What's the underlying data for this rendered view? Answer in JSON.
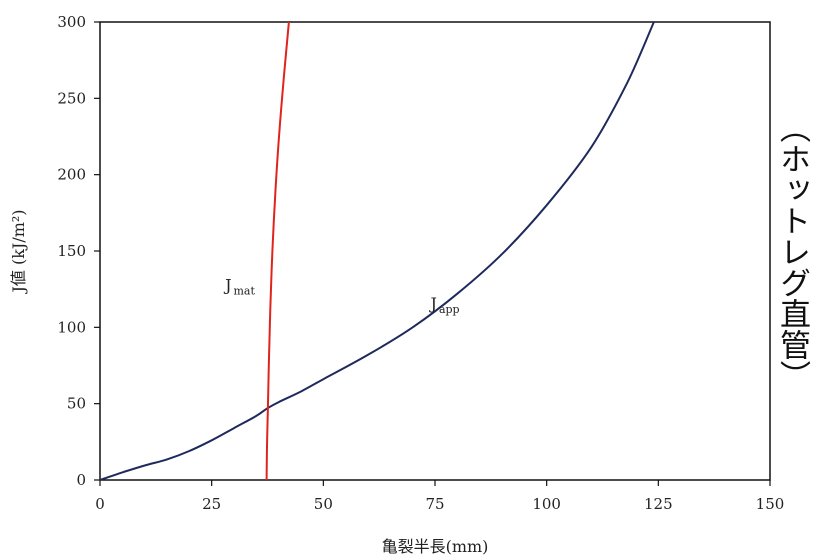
{
  "chart_data": {
    "type": "line",
    "xlabel": "亀裂半長(mm)",
    "ylabel": "J値 (kJ/m²)",
    "side_label": "（ホットレグ直管）",
    "xlim": [
      0,
      150
    ],
    "ylim": [
      0,
      300
    ],
    "x_ticks": [
      0,
      25,
      50,
      75,
      100,
      125,
      150
    ],
    "y_ticks": [
      0,
      50,
      100,
      150,
      200,
      250,
      300
    ],
    "grid": false,
    "series": [
      {
        "key": "J_app",
        "label_main": "J",
        "label_sub": "app",
        "color": "#1f2a5c",
        "label_at": {
          "x": 74,
          "y": 112
        },
        "points": [
          [
            0,
            0
          ],
          [
            2,
            2
          ],
          [
            5,
            5
          ],
          [
            10,
            9.5
          ],
          [
            15,
            13.5
          ],
          [
            20,
            19
          ],
          [
            25,
            26
          ],
          [
            30,
            34
          ],
          [
            35,
            42
          ],
          [
            37.5,
            47
          ],
          [
            40,
            51
          ],
          [
            45,
            58
          ],
          [
            50,
            66
          ],
          [
            60,
            82
          ],
          [
            70,
            100
          ],
          [
            80,
            122
          ],
          [
            90,
            148
          ],
          [
            100,
            180
          ],
          [
            110,
            218
          ],
          [
            118,
            260
          ],
          [
            124,
            300
          ]
        ]
      },
      {
        "key": "J_mat",
        "label_main": "J",
        "label_sub": "mat",
        "color": "#e0241c",
        "label_at": {
          "x": 28,
          "y": 124
        },
        "points": [
          [
            37.3,
            0
          ],
          [
            37.4,
            25
          ],
          [
            37.6,
            47
          ],
          [
            37.8,
            75
          ],
          [
            38.1,
            110
          ],
          [
            38.6,
            150
          ],
          [
            39.3,
            190
          ],
          [
            40.2,
            230
          ],
          [
            41.2,
            265
          ],
          [
            42.3,
            300
          ]
        ]
      }
    ]
  }
}
